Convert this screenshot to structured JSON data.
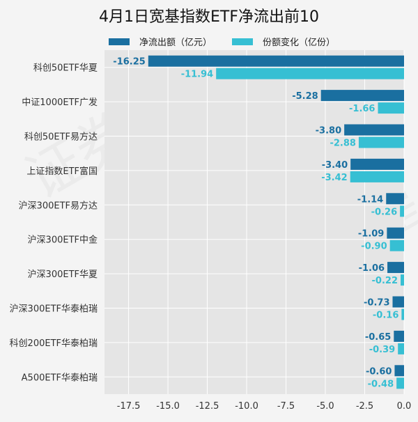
{
  "chart_data": {
    "type": "bar",
    "orientation": "horizontal",
    "title": "4月1日宽基指数ETF净流出前10",
    "categories": [
      "科创50ETF华夏",
      "中证1000ETF广发",
      "科创50ETF易方达",
      "上证指数ETF富国",
      "沪深300ETF易方达",
      "沪深300ETF中金",
      "沪深300ETF华夏",
      "沪深300ETF华泰柏瑞",
      "科创200ETF华泰柏瑞",
      "A500ETF华泰柏瑞"
    ],
    "series": [
      {
        "name": "净流出额（亿元）",
        "color": "#1a6fa0",
        "values": [
          -16.25,
          -5.28,
          -3.8,
          -3.4,
          -1.14,
          -1.09,
          -1.06,
          -0.73,
          -0.65,
          -0.6
        ]
      },
      {
        "name": "份额变化（亿份）",
        "color": "#36bfd3",
        "values": [
          -11.94,
          -1.66,
          -2.88,
          -3.42,
          -0.26,
          -0.9,
          -0.22,
          -0.16,
          -0.39,
          -0.48
        ]
      }
    ],
    "xticks": [
      -17.5,
      -15.0,
      -12.5,
      -10.0,
      -7.5,
      -5.0,
      -2.5,
      0.0
    ],
    "xlim": [
      -19.03,
      0
    ],
    "grid": true,
    "legend_position": "top",
    "xlabel": "",
    "ylabel": ""
  },
  "watermark": "证券之星"
}
